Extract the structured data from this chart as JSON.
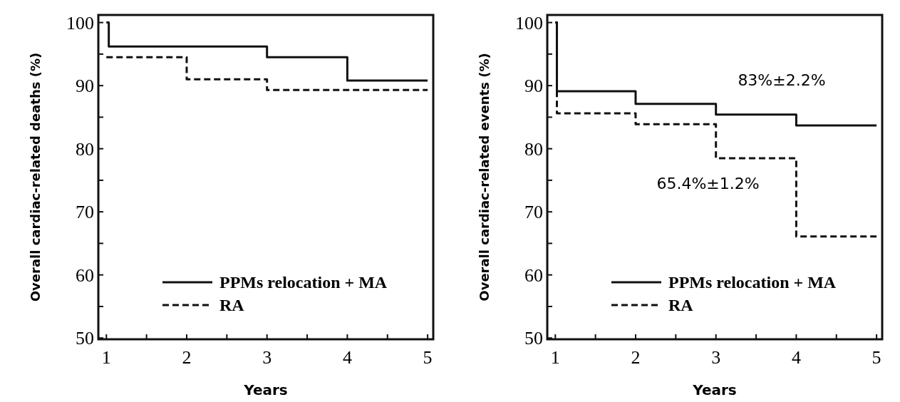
{
  "chart_data": [
    {
      "type": "step",
      "xlabel": "Years",
      "ylabel": "Overall cardiac-related deaths (%)",
      "xlim": [
        0.9,
        5.07
      ],
      "ylim": [
        49.8,
        101.2
      ],
      "xticks": [
        1,
        {
          "value": 1.5,
          "label": null
        },
        2,
        {
          "value": 2.5,
          "label": null
        },
        3,
        {
          "value": 3.5,
          "label": null
        },
        4,
        {
          "value": 4.5,
          "label": null
        },
        5
      ],
      "yticks": [
        50,
        {
          "value": 55,
          "label": null
        },
        60,
        {
          "value": 65,
          "label": null
        },
        70,
        {
          "value": 75,
          "label": null
        },
        80,
        {
          "value": 85,
          "label": null
        },
        90,
        {
          "value": 95,
          "label": null
        },
        100
      ],
      "legend": "bottom right",
      "grid": false,
      "series": [
        {
          "name": "PPMs relocation + MA",
          "color": "#111111",
          "line_style": "solid",
          "x": [
            1,
            1.03,
            3,
            4,
            5
          ],
          "values": [
            100,
            96.2,
            94.5,
            90.8,
            90.8
          ]
        },
        {
          "name": "RA",
          "color": "#111111",
          "line_style": "dashed",
          "x": [
            1,
            2,
            3,
            5
          ],
          "values": [
            94.5,
            91,
            89.3,
            89.3
          ]
        }
      ]
    },
    {
      "type": "step",
      "xlabel": "Years",
      "ylabel": "Overall cardiac-related events (%)",
      "xlim": [
        0.9,
        5.07
      ],
      "ylim": [
        49.8,
        101.2
      ],
      "xticks": [
        1,
        {
          "value": 1.5,
          "label": null
        },
        2,
        {
          "value": 2.5,
          "label": null
        },
        3,
        {
          "value": 3.5,
          "label": null
        },
        4,
        {
          "value": 4.5,
          "label": null
        },
        5
      ],
      "yticks": [
        50,
        {
          "value": 55,
          "label": null
        },
        60,
        {
          "value": 65,
          "label": null
        },
        70,
        {
          "value": 75,
          "label": null
        },
        80,
        {
          "value": 85,
          "label": null
        },
        90,
        {
          "value": 95,
          "label": null
        },
        100
      ],
      "legend": "bottom right",
      "grid": false,
      "annotations": [
        "83%±2.2%",
        "65.4%±1.2%"
      ],
      "series": [
        {
          "name": "PPMs relocation + MA",
          "color": "#111111",
          "line_style": "solid",
          "x": [
            1,
            1.02,
            2,
            3,
            4,
            5
          ],
          "values": [
            100,
            89.1,
            87.1,
            85.4,
            83.7,
            83.7
          ]
        },
        {
          "name": "RA",
          "color": "#111111",
          "line_style": "dashed",
          "x": [
            1,
            1.02,
            2,
            3,
            4,
            5
          ],
          "values": [
            100,
            85.6,
            83.9,
            78.5,
            66.1,
            66.1
          ]
        }
      ]
    }
  ]
}
